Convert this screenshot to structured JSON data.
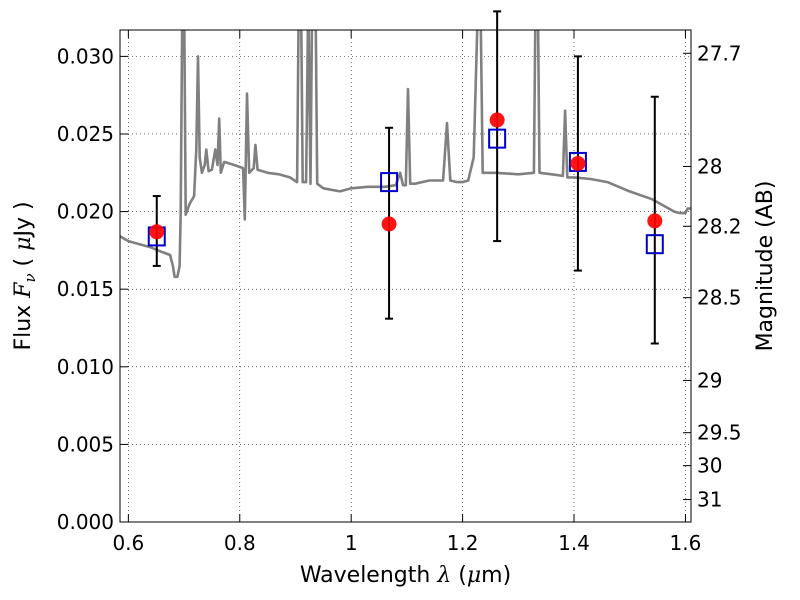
{
  "chart_data": {
    "type": "scatter",
    "xlabel": "Wavelength  λ (μm)",
    "ylabel": "Flux  F_ν  ( μJy )",
    "ylabel_parts": [
      "Flux ",
      "F",
      "ν",
      "  ( ",
      "μ",
      "Jy )"
    ],
    "xlabel_parts": [
      "Wavelength  ",
      "λ",
      " (",
      "μ",
      "m)"
    ],
    "right_ylabel": "Magnitude (AB)",
    "xlim": [
      0.585,
      1.61
    ],
    "ylim": [
      0.0,
      0.0317
    ],
    "grid": true,
    "x_ticks": [
      0.6,
      0.8,
      1.0,
      1.2,
      1.4,
      1.6
    ],
    "x_tick_labels": [
      "0.6",
      "0.8",
      "1",
      "1.2",
      "1.4",
      "1.6"
    ],
    "y_ticks": [
      0.0,
      0.005,
      0.01,
      0.015,
      0.02,
      0.025,
      0.03
    ],
    "y_tick_labels": [
      "0.000",
      "0.005",
      "0.010",
      "0.015",
      "0.020",
      "0.025",
      "0.030"
    ],
    "mag_ticks": [
      {
        "mag": 27.7,
        "label": "27.7"
      },
      {
        "mag": 28,
        "label": "28"
      },
      {
        "mag": 28.2,
        "label": "28.2"
      },
      {
        "mag": 28.5,
        "label": "28.5"
      },
      {
        "mag": 29,
        "label": "29"
      },
      {
        "mag": 29.5,
        "label": "29.5"
      },
      {
        "mag": 30,
        "label": "30"
      },
      {
        "mag": 31,
        "label": "31"
      }
    ],
    "observed": {
      "color": "#ff0000",
      "points": [
        {
          "x": 0.651,
          "y": 0.0187,
          "err_low": 0.0022,
          "err_high": 0.0023
        },
        {
          "x": 1.068,
          "y": 0.0192,
          "err_low": 0.0061,
          "err_high": 0.0062
        },
        {
          "x": 1.262,
          "y": 0.0259,
          "err_low": 0.0078,
          "err_high": 0.007
        },
        {
          "x": 1.407,
          "y": 0.0231,
          "err_low": 0.0069,
          "err_high": 0.0069
        },
        {
          "x": 1.545,
          "y": 0.0194,
          "err_low": 0.0079,
          "err_high": 0.008
        }
      ]
    },
    "model_photometry": {
      "color": "#0000cc",
      "points": [
        {
          "x": 0.651,
          "y": 0.0184
        },
        {
          "x": 1.068,
          "y": 0.0219
        },
        {
          "x": 1.262,
          "y": 0.0247
        },
        {
          "x": 1.407,
          "y": 0.0232
        },
        {
          "x": 1.545,
          "y": 0.0179
        }
      ]
    },
    "model_spectrum": {
      "color": "#808080",
      "points": [
        [
          0.585,
          0.0184
        ],
        [
          0.6,
          0.0181
        ],
        [
          0.62,
          0.0179
        ],
        [
          0.64,
          0.0177
        ],
        [
          0.66,
          0.0174
        ],
        [
          0.675,
          0.0172
        ],
        [
          0.68,
          0.0165
        ],
        [
          0.683,
          0.0158
        ],
        [
          0.688,
          0.0158
        ],
        [
          0.692,
          0.0165
        ],
        [
          0.694,
          0.02
        ],
        [
          0.697,
          0.034
        ],
        [
          0.7,
          0.034
        ],
        [
          0.703,
          0.0198
        ],
        [
          0.71,
          0.0205
        ],
        [
          0.718,
          0.021
        ],
        [
          0.722,
          0.024
        ],
        [
          0.725,
          0.03
        ],
        [
          0.728,
          0.0235
        ],
        [
          0.732,
          0.0225
        ],
        [
          0.737,
          0.023
        ],
        [
          0.74,
          0.024
        ],
        [
          0.744,
          0.0226
        ],
        [
          0.75,
          0.0227
        ],
        [
          0.756,
          0.024
        ],
        [
          0.76,
          0.023
        ],
        [
          0.763,
          0.026
        ],
        [
          0.766,
          0.0225
        ],
        [
          0.772,
          0.0232
        ],
        [
          0.79,
          0.023
        ],
        [
          0.806,
          0.0228
        ],
        [
          0.809,
          0.0195
        ],
        [
          0.813,
          0.0276
        ],
        [
          0.817,
          0.0225
        ],
        [
          0.825,
          0.0228
        ],
        [
          0.828,
          0.0243
        ],
        [
          0.832,
          0.0227
        ],
        [
          0.85,
          0.0225
        ],
        [
          0.87,
          0.0224
        ],
        [
          0.89,
          0.0222
        ],
        [
          0.903,
          0.0219
        ],
        [
          0.906,
          0.034
        ],
        [
          0.91,
          0.034
        ],
        [
          0.913,
          0.0219
        ],
        [
          0.919,
          0.0219
        ],
        [
          0.923,
          0.034
        ],
        [
          0.927,
          0.0218
        ],
        [
          0.93,
          0.034
        ],
        [
          0.936,
          0.034
        ],
        [
          0.939,
          0.0218
        ],
        [
          0.95,
          0.0215
        ],
        [
          0.98,
          0.0213
        ],
        [
          1.0,
          0.0215
        ],
        [
          1.03,
          0.0216
        ],
        [
          1.06,
          0.0216
        ],
        [
          1.08,
          0.0217
        ],
        [
          1.088,
          0.0225
        ],
        [
          1.093,
          0.0217
        ],
        [
          1.098,
          0.0217
        ],
        [
          1.102,
          0.0279
        ],
        [
          1.106,
          0.0218
        ],
        [
          1.115,
          0.0218
        ],
        [
          1.14,
          0.022
        ],
        [
          1.165,
          0.022
        ],
        [
          1.172,
          0.0257
        ],
        [
          1.178,
          0.022
        ],
        [
          1.19,
          0.0219
        ],
        [
          1.2,
          0.0219
        ],
        [
          1.21,
          0.022
        ],
        [
          1.22,
          0.0235
        ],
        [
          1.228,
          0.034
        ],
        [
          1.232,
          0.034
        ],
        [
          1.236,
          0.0225
        ],
        [
          1.26,
          0.0225
        ],
        [
          1.3,
          0.0224
        ],
        [
          1.328,
          0.0225
        ],
        [
          1.331,
          0.034
        ],
        [
          1.335,
          0.034
        ],
        [
          1.338,
          0.0225
        ],
        [
          1.36,
          0.0224
        ],
        [
          1.38,
          0.0223
        ],
        [
          1.384,
          0.0265
        ],
        [
          1.388,
          0.0222
        ],
        [
          1.4,
          0.0222
        ],
        [
          1.43,
          0.0221
        ],
        [
          1.46,
          0.0219
        ],
        [
          1.5,
          0.0213
        ],
        [
          1.54,
          0.0208
        ],
        [
          1.56,
          0.0204
        ],
        [
          1.58,
          0.02
        ],
        [
          1.59,
          0.0199
        ],
        [
          1.6,
          0.0199
        ],
        [
          1.604,
          0.0202
        ],
        [
          1.61,
          0.0202
        ]
      ]
    }
  }
}
